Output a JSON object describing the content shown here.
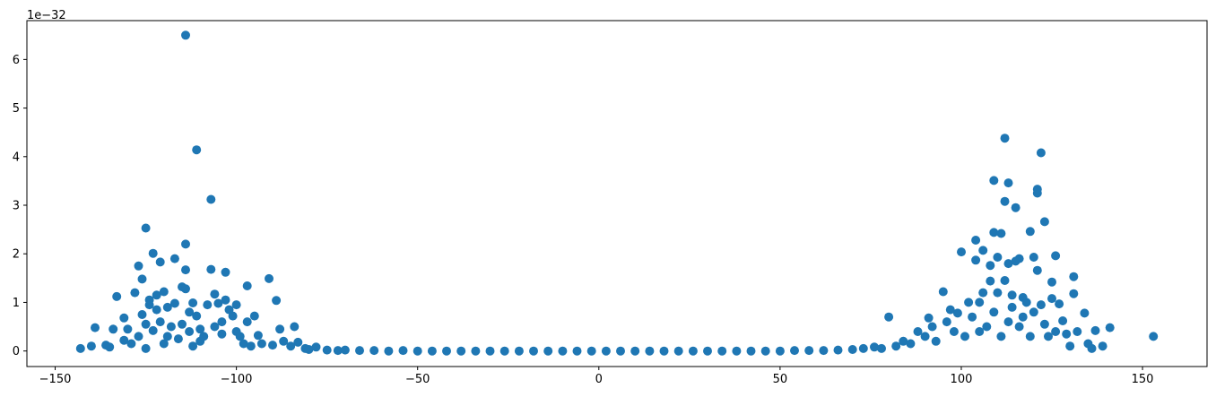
{
  "chart_data": {
    "type": "scatter",
    "title": "",
    "xlabel": "",
    "ylabel": "",
    "y_offset_label": "1e−32",
    "y_scale_factor": 1e-32,
    "xlim": [
      -157.8,
      167.8
    ],
    "ylim": [
      -0.32,
      6.8
    ],
    "x_ticks": [
      -150,
      -100,
      -50,
      0,
      50,
      100,
      150
    ],
    "x_tick_labels": [
      "−150",
      "−100",
      "−50",
      "0",
      "50",
      "100",
      "150"
    ],
    "y_ticks": [
      0,
      1,
      2,
      3,
      4,
      5,
      6
    ],
    "y_tick_labels": [
      "0",
      "1",
      "2",
      "3",
      "4",
      "5",
      "6"
    ],
    "grid": false,
    "marker_color": "#1f77b4",
    "series": [
      {
        "points": [
          [
            -143,
            0.05
          ],
          [
            -140,
            0.1
          ],
          [
            -139,
            0.48
          ],
          [
            -136,
            0.12
          ],
          [
            -135,
            0.08
          ],
          [
            -134,
            0.45
          ],
          [
            -133,
            1.12
          ],
          [
            -131,
            0.68
          ],
          [
            -131,
            0.22
          ],
          [
            -130,
            0.45
          ],
          [
            -129,
            0.15
          ],
          [
            -128,
            1.2
          ],
          [
            -127,
            0.3
          ],
          [
            -127,
            1.75
          ],
          [
            -126,
            1.48
          ],
          [
            -126,
            0.75
          ],
          [
            -125,
            0.55
          ],
          [
            -125,
            2.53
          ],
          [
            -125,
            0.05
          ],
          [
            -124,
            1.05
          ],
          [
            -124,
            0.95
          ],
          [
            -123,
            2.01
          ],
          [
            -123,
            0.42
          ],
          [
            -122,
            1.15
          ],
          [
            -122,
            0.85
          ],
          [
            -121,
            1.83
          ],
          [
            -121,
            0.6
          ],
          [
            -120,
            1.22
          ],
          [
            -120,
            0.15
          ],
          [
            -119,
            0.9
          ],
          [
            -119,
            0.3
          ],
          [
            -118,
            0.5
          ],
          [
            -117,
            1.9
          ],
          [
            -117,
            0.98
          ],
          [
            -116,
            0.25
          ],
          [
            -115,
            1.32
          ],
          [
            -115,
            0.55
          ],
          [
            -114,
            6.5
          ],
          [
            -114,
            2.2
          ],
          [
            -114,
            1.67
          ],
          [
            -114,
            1.28
          ],
          [
            -113,
            0.8
          ],
          [
            -113,
            0.4
          ],
          [
            -112,
            0.99
          ],
          [
            -112,
            0.1
          ],
          [
            -111,
            4.14
          ],
          [
            -111,
            0.72
          ],
          [
            -110,
            0.45
          ],
          [
            -110,
            0.2
          ],
          [
            -109,
            0.3
          ],
          [
            -108,
            0.95
          ],
          [
            -107,
            3.12
          ],
          [
            -107,
            1.68
          ],
          [
            -106,
            1.17
          ],
          [
            -106,
            0.5
          ],
          [
            -105,
            0.98
          ],
          [
            -104,
            0.35
          ],
          [
            -104,
            0.6
          ],
          [
            -103,
            1.62
          ],
          [
            -103,
            1.05
          ],
          [
            -102,
            0.85
          ],
          [
            -101,
            0.72
          ],
          [
            -100,
            0.95
          ],
          [
            -100,
            0.4
          ],
          [
            -99,
            0.3
          ],
          [
            -98,
            0.15
          ],
          [
            -97,
            0.6
          ],
          [
            -97,
            1.34
          ],
          [
            -96,
            0.1
          ],
          [
            -95,
            0.72
          ],
          [
            -94,
            0.32
          ],
          [
            -93,
            0.15
          ],
          [
            -91,
            1.49
          ],
          [
            -90,
            0.12
          ],
          [
            -89,
            1.04
          ],
          [
            -88,
            0.45
          ],
          [
            -87,
            0.2
          ],
          [
            -85,
            0.1
          ],
          [
            -84,
            0.5
          ],
          [
            -83,
            0.18
          ],
          [
            -81,
            0.05
          ],
          [
            -80,
            0.03
          ],
          [
            -78,
            0.08
          ],
          [
            -75,
            0.02
          ],
          [
            -72,
            0.01
          ],
          [
            -70,
            0.02
          ],
          [
            -66,
            0.01
          ],
          [
            -62,
            0.01
          ],
          [
            -58,
            0.0
          ],
          [
            -54,
            0.01
          ],
          [
            -50,
            0.0
          ],
          [
            -46,
            0.0
          ],
          [
            -42,
            0.0
          ],
          [
            -38,
            0.0
          ],
          [
            -34,
            0.0
          ],
          [
            -30,
            0.0
          ],
          [
            -26,
            0.0
          ],
          [
            -22,
            0.0
          ],
          [
            -18,
            0.0
          ],
          [
            -14,
            0.0
          ],
          [
            -10,
            0.0
          ],
          [
            -6,
            0.0
          ],
          [
            -2,
            0.0
          ],
          [
            2,
            0.0
          ],
          [
            6,
            0.0
          ],
          [
            10,
            0.0
          ],
          [
            14,
            0.0
          ],
          [
            18,
            0.0
          ],
          [
            22,
            0.0
          ],
          [
            26,
            0.0
          ],
          [
            30,
            0.0
          ],
          [
            34,
            0.0
          ],
          [
            38,
            0.0
          ],
          [
            42,
            0.0
          ],
          [
            46,
            0.0
          ],
          [
            50,
            0.0
          ],
          [
            54,
            0.01
          ],
          [
            58,
            0.01
          ],
          [
            62,
            0.01
          ],
          [
            66,
            0.02
          ],
          [
            70,
            0.03
          ],
          [
            73,
            0.05
          ],
          [
            76,
            0.08
          ],
          [
            78,
            0.05
          ],
          [
            80,
            0.7
          ],
          [
            82,
            0.1
          ],
          [
            84,
            0.2
          ],
          [
            86,
            0.15
          ],
          [
            88,
            0.4
          ],
          [
            90,
            0.3
          ],
          [
            91,
            0.68
          ],
          [
            92,
            0.5
          ],
          [
            93,
            0.2
          ],
          [
            95,
            1.22
          ],
          [
            96,
            0.6
          ],
          [
            97,
            0.85
          ],
          [
            98,
            0.4
          ],
          [
            99,
            0.78
          ],
          [
            100,
            2.04
          ],
          [
            101,
            0.3
          ],
          [
            102,
            1.0
          ],
          [
            103,
            0.7
          ],
          [
            104,
            1.87
          ],
          [
            104,
            2.28
          ],
          [
            105,
            1.0
          ],
          [
            105,
            0.4
          ],
          [
            106,
            2.07
          ],
          [
            106,
            1.2
          ],
          [
            107,
            0.5
          ],
          [
            108,
            1.44
          ],
          [
            108,
            1.76
          ],
          [
            109,
            3.51
          ],
          [
            109,
            2.44
          ],
          [
            109,
            0.8
          ],
          [
            110,
            1.93
          ],
          [
            110,
            1.2
          ],
          [
            111,
            2.42
          ],
          [
            111,
            0.3
          ],
          [
            112,
            4.38
          ],
          [
            112,
            3.08
          ],
          [
            112,
            1.45
          ],
          [
            113,
            3.46
          ],
          [
            113,
            1.8
          ],
          [
            113,
            0.6
          ],
          [
            114,
            1.15
          ],
          [
            114,
            0.9
          ],
          [
            115,
            2.95
          ],
          [
            115,
            1.85
          ],
          [
            116,
            1.9
          ],
          [
            116,
            0.5
          ],
          [
            117,
            1.1
          ],
          [
            117,
            0.7
          ],
          [
            118,
            1.0
          ],
          [
            119,
            2.46
          ],
          [
            119,
            0.3
          ],
          [
            120,
            1.93
          ],
          [
            120,
            0.8
          ],
          [
            121,
            3.25
          ],
          [
            121,
            3.33
          ],
          [
            121,
            1.66
          ],
          [
            122,
            4.08
          ],
          [
            122,
            0.95
          ],
          [
            123,
            2.66
          ],
          [
            123,
            0.55
          ],
          [
            124,
            0.3
          ],
          [
            125,
            1.42
          ],
          [
            125,
            1.08
          ],
          [
            126,
            1.96
          ],
          [
            126,
            0.4
          ],
          [
            127,
            0.97
          ],
          [
            128,
            0.62
          ],
          [
            129,
            0.35
          ],
          [
            130,
            0.1
          ],
          [
            131,
            1.53
          ],
          [
            131,
            1.18
          ],
          [
            132,
            0.4
          ],
          [
            134,
            0.78
          ],
          [
            135,
            0.15
          ],
          [
            136,
            0.05
          ],
          [
            137,
            0.42
          ],
          [
            139,
            0.1
          ],
          [
            141,
            0.48
          ],
          [
            153,
            0.3
          ]
        ]
      }
    ]
  }
}
